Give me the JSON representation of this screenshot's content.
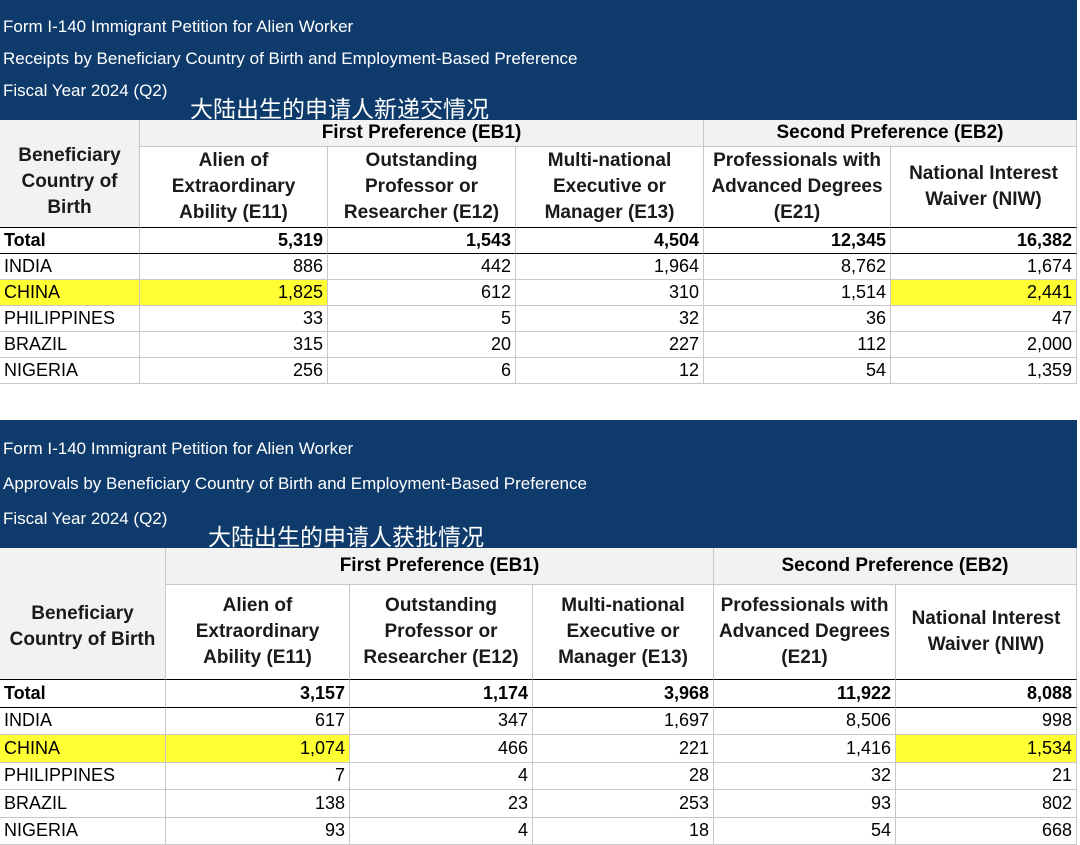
{
  "tables": [
    {
      "header": {
        "lines": [
          "Form I-140 Immigrant Petition for Alien Worker",
          "Receipts by Beneficiary Country of Birth and Employment-Based Preference",
          "Fiscal Year 2024 (Q2)"
        ],
        "annotation": "大陆出生的申请人新递交情况"
      },
      "group_headers": [
        "First Preference (EB1)",
        "Second Preference (EB2)"
      ],
      "columns": [
        "Beneficiary Country of Birth",
        "Alien of Extraordinary Ability (E11)",
        "Outstanding Professor or Researcher (E12)",
        "Multi-national Executive or Manager (E13)",
        "Professionals with Advanced Degrees (E21)",
        "National Interest Waiver (NIW)"
      ],
      "rows": [
        [
          "Total",
          "5,319",
          "1,543",
          "4,504",
          "12,345",
          "16,382"
        ],
        [
          "INDIA",
          "886",
          "442",
          "1,964",
          "8,762",
          "1,674"
        ],
        [
          "CHINA",
          "1,825",
          "612",
          "310",
          "1,514",
          "2,441"
        ],
        [
          "PHILIPPINES",
          "33",
          "5",
          "32",
          "36",
          "47"
        ],
        [
          "BRAZIL",
          "315",
          "20",
          "227",
          "112",
          "2,000"
        ],
        [
          "NIGERIA",
          "256",
          "6",
          "12",
          "54",
          "1,359"
        ]
      ]
    },
    {
      "header": {
        "lines": [
          "Form I-140 Immigrant Petition for Alien Worker",
          "Approvals by Beneficiary Country of Birth and Employment-Based Preference",
          "Fiscal Year 2024 (Q2)"
        ],
        "annotation": "大陆出生的申请人获批情况"
      },
      "group_headers": [
        "First Preference (EB1)",
        "Second Preference (EB2)"
      ],
      "columns": [
        "Beneficiary Country of Birth",
        "Alien of Extraordinary Ability (E11)",
        "Outstanding Professor or Researcher (E12)",
        "Multi-national Executive or Manager (E13)",
        "Professionals with Advanced Degrees (E21)",
        "National Interest Waiver (NIW)"
      ],
      "rows": [
        [
          "Total",
          "3,157",
          "1,174",
          "3,968",
          "11,922",
          "8,088"
        ],
        [
          "INDIA",
          "617",
          "347",
          "1,697",
          "8,506",
          "998"
        ],
        [
          "CHINA",
          "1,074",
          "466",
          "221",
          "1,416",
          "1,534"
        ],
        [
          "PHILIPPINES",
          "7",
          "4",
          "28",
          "32",
          "21"
        ],
        [
          "BRAZIL",
          "138",
          "23",
          "253",
          "93",
          "802"
        ],
        [
          "NIGERIA",
          "93",
          "4",
          "18",
          "54",
          "668"
        ]
      ]
    }
  ]
}
